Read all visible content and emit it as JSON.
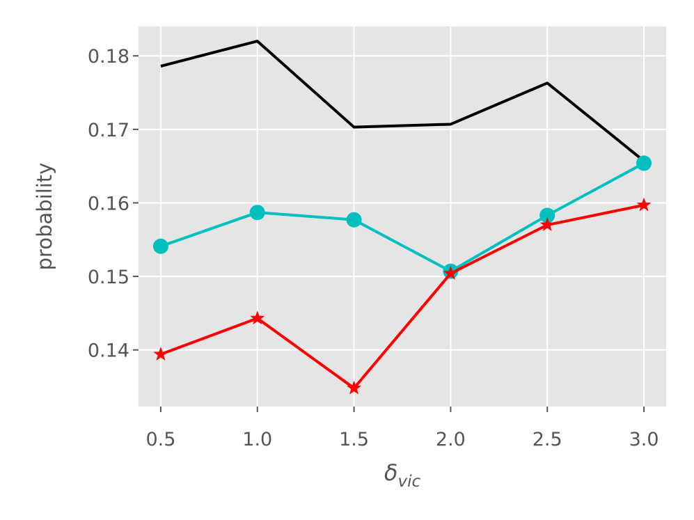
{
  "chart_data": {
    "type": "line",
    "title": "",
    "xlabel": "δ",
    "xlabel_subscript": "vic",
    "ylabel": "probability",
    "x": [
      0.5,
      1.0,
      1.5,
      2.0,
      2.5,
      3.0
    ],
    "xticks": [
      0.5,
      1.0,
      1.5,
      2.0,
      2.5,
      3.0
    ],
    "xtick_labels": [
      "0.5",
      "1.0",
      "1.5",
      "2.0",
      "2.5",
      "3.0"
    ],
    "yticks": [
      0.14,
      0.15,
      0.16,
      0.17,
      0.18
    ],
    "ytick_labels": [
      "0.14",
      "0.15",
      "0.16",
      "0.17",
      "0.18"
    ],
    "xlim": [
      0.385,
      3.115
    ],
    "ylim": [
      0.1323,
      0.184
    ],
    "grid": true,
    "background": "#e5e5e5",
    "series": [
      {
        "color": "#000000",
        "marker": "none",
        "values": [
          0.1786,
          0.182,
          0.1703,
          0.1707,
          0.1763,
          0.1657
        ]
      },
      {
        "color": "#00bfbf",
        "marker": "circle",
        "values": [
          0.1541,
          0.1587,
          0.1577,
          0.1507,
          0.1583,
          0.1654
        ]
      },
      {
        "color": "#ff0000",
        "marker": "star",
        "values": [
          0.1394,
          0.1443,
          0.1348,
          0.1504,
          0.157,
          0.1597
        ]
      }
    ]
  }
}
